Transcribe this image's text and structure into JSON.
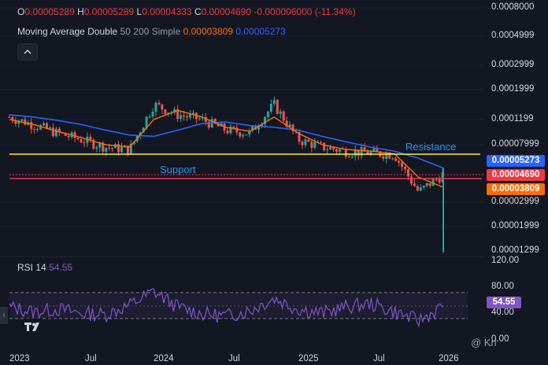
{
  "ohlc": {
    "o_label": "O",
    "o": "0.00005289",
    "h_label": "H",
    "h": "0.00005289",
    "l_label": "L",
    "l": "0.00004333",
    "c_label": "C",
    "c": "0.00004690",
    "change": "-0.000006000 (-11.34%)"
  },
  "ma_legend": {
    "name": "Moving Average Double",
    "params": "50 200 Simple",
    "fast_value": "0.00003809",
    "slow_value": "0.00005273"
  },
  "rsi_legend": {
    "name": "RSI",
    "length": "14",
    "value": "54.55"
  },
  "price_axis": [
    "0.0008000",
    "0.0004999",
    "0.0002999",
    "0.0001999",
    "0.0001199",
    "0.00007999",
    "0.00002999",
    "0.00001999",
    "0.00001299"
  ],
  "price_tags": {
    "ma_slow": "0.00005273",
    "last_price": "0.00004690",
    "ma_fast": "0.00003809"
  },
  "rsi_axis": [
    "120.00",
    "80.00",
    "40.00",
    "0.00"
  ],
  "rsi_tag": "54.55",
  "time_axis": [
    "2023",
    "Jul",
    "2024",
    "Jul",
    "2025",
    "Jul",
    "2026"
  ],
  "annotations": {
    "resistance": "Resistance",
    "support": "Support"
  },
  "watermark": "@ Kri",
  "icons": {
    "collapse": "chevron-up-icon",
    "logo": "tradingview-logo-icon",
    "scroll": "chevron-left-icon"
  },
  "colors": {
    "background": "#131722",
    "ma_fast": "#ff6d00",
    "ma_slow": "#2962ff",
    "resistance": "#ffeb3b",
    "support": "#f23645",
    "rsi": "#7e57c2",
    "up": "#26a69a",
    "down": "#ef5350"
  },
  "chart_data": [
    {
      "type": "line",
      "scale": "log",
      "x": [
        "2023-01",
        "2023-03",
        "2023-05",
        "2023-07",
        "2023-09",
        "2023-11",
        "2024-01",
        "2024-03",
        "2024-05",
        "2024-07",
        "2024-09",
        "2024-11",
        "2025-01",
        "2025-03",
        "2025-05",
        "2025-07",
        "2025-09",
        "2025-11",
        "2025-12"
      ],
      "series": [
        {
          "name": "",
          "values": [
            0.000125,
            0.00011,
            9.5e-05,
            8.5e-05,
            7.5e-05,
            7.2e-05,
            0.000155,
            0.00013,
            0.00012,
            0.0001,
            9.5e-05,
            0.000155,
            8.5e-05,
            7.5e-05,
            7e-05,
            6.8e-05,
            6.6e-05,
            3.5e-05,
            4.69e-05
          ]
        },
        {
          "name": "50",
          "values": [
            0.00012,
            0.00011,
            9.8e-05,
            8.8e-05,
            7.8e-05,
            7.5e-05,
            0.00012,
            0.00014,
            0.000125,
            0.000105,
            9.8e-05,
            0.000125,
            9.5e-05,
            7.8e-05,
            7.2e-05,
            7e-05,
            6.7e-05,
            4.5e-05,
            3.809e-05
          ]
        },
        {
          "name": "200",
          "values": [
            0.00013,
            0.000125,
            0.000118,
            0.00011,
            0.0001,
            9.2e-05,
            9e-05,
            0.0001,
            0.000112,
            0.000115,
            0.000108,
            0.000105,
            0.0001,
            9e-05,
            8.2e-05,
            7.5e-05,
            7e-05,
            6.2e-05,
            5.273e-05
          ]
        }
      ],
      "annotations": [
        {
          "label": "Resistance",
          "y": 8e-05
        },
        {
          "label": "Support",
          "y": 4.4e-05
        }
      ],
      "ylim": [
        1.2e-05,
        0.0008
      ]
    },
    {
      "type": "line",
      "x": [
        "2023-01",
        "2023-03",
        "2023-05",
        "2023-07",
        "2023-09",
        "2023-11",
        "2024-01",
        "2024-03",
        "2024-05",
        "2024-07",
        "2024-09",
        "2024-11",
        "2025-01",
        "2025-03",
        "2025-05",
        "2025-07",
        "2025-09",
        "2025-11",
        "2025-12"
      ],
      "series": [
        {
          "name": "RSI",
          "values": [
            55,
            48,
            52,
            46,
            44,
            58,
            78,
            55,
            45,
            42,
            50,
            68,
            52,
            46,
            55,
            60,
            48,
            35,
            54.55
          ]
        }
      ],
      "ylim": [
        0,
        120
      ],
      "bands": [
        70,
        50,
        30
      ]
    }
  ]
}
